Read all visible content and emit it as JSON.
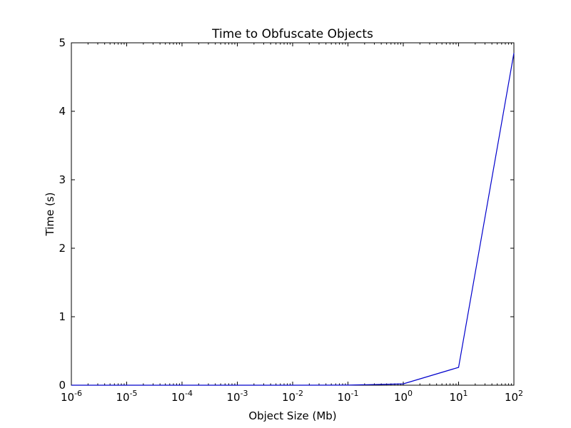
{
  "chart_data": {
    "type": "line",
    "title": "Time to Obfuscate Objects",
    "xlabel": "Object Size (Mb)",
    "ylabel": "Time (s)",
    "xscale": "log",
    "xlim": [
      1e-06,
      100
    ],
    "ylim": [
      0,
      5
    ],
    "grid": false,
    "x_ticks": [
      {
        "base": "10",
        "exp": "-6",
        "value": 1e-06
      },
      {
        "base": "10",
        "exp": "-5",
        "value": 1e-05
      },
      {
        "base": "10",
        "exp": "-4",
        "value": 0.0001
      },
      {
        "base": "10",
        "exp": "-3",
        "value": 0.001
      },
      {
        "base": "10",
        "exp": "-2",
        "value": 0.01
      },
      {
        "base": "10",
        "exp": "-1",
        "value": 0.1
      },
      {
        "base": "10",
        "exp": "0",
        "value": 1
      },
      {
        "base": "10",
        "exp": "1",
        "value": 10
      },
      {
        "base": "10",
        "exp": "2",
        "value": 100
      }
    ],
    "y_ticks": [
      "0",
      "1",
      "2",
      "3",
      "4",
      "5"
    ],
    "series": [
      {
        "color": "#0000cc",
        "x": [
          1e-06,
          1e-05,
          0.0001,
          0.001,
          0.01,
          0.1,
          1,
          10,
          100
        ],
        "y": [
          0,
          0,
          0,
          0,
          0,
          0.001,
          0.02,
          0.26,
          4.85
        ]
      }
    ]
  }
}
